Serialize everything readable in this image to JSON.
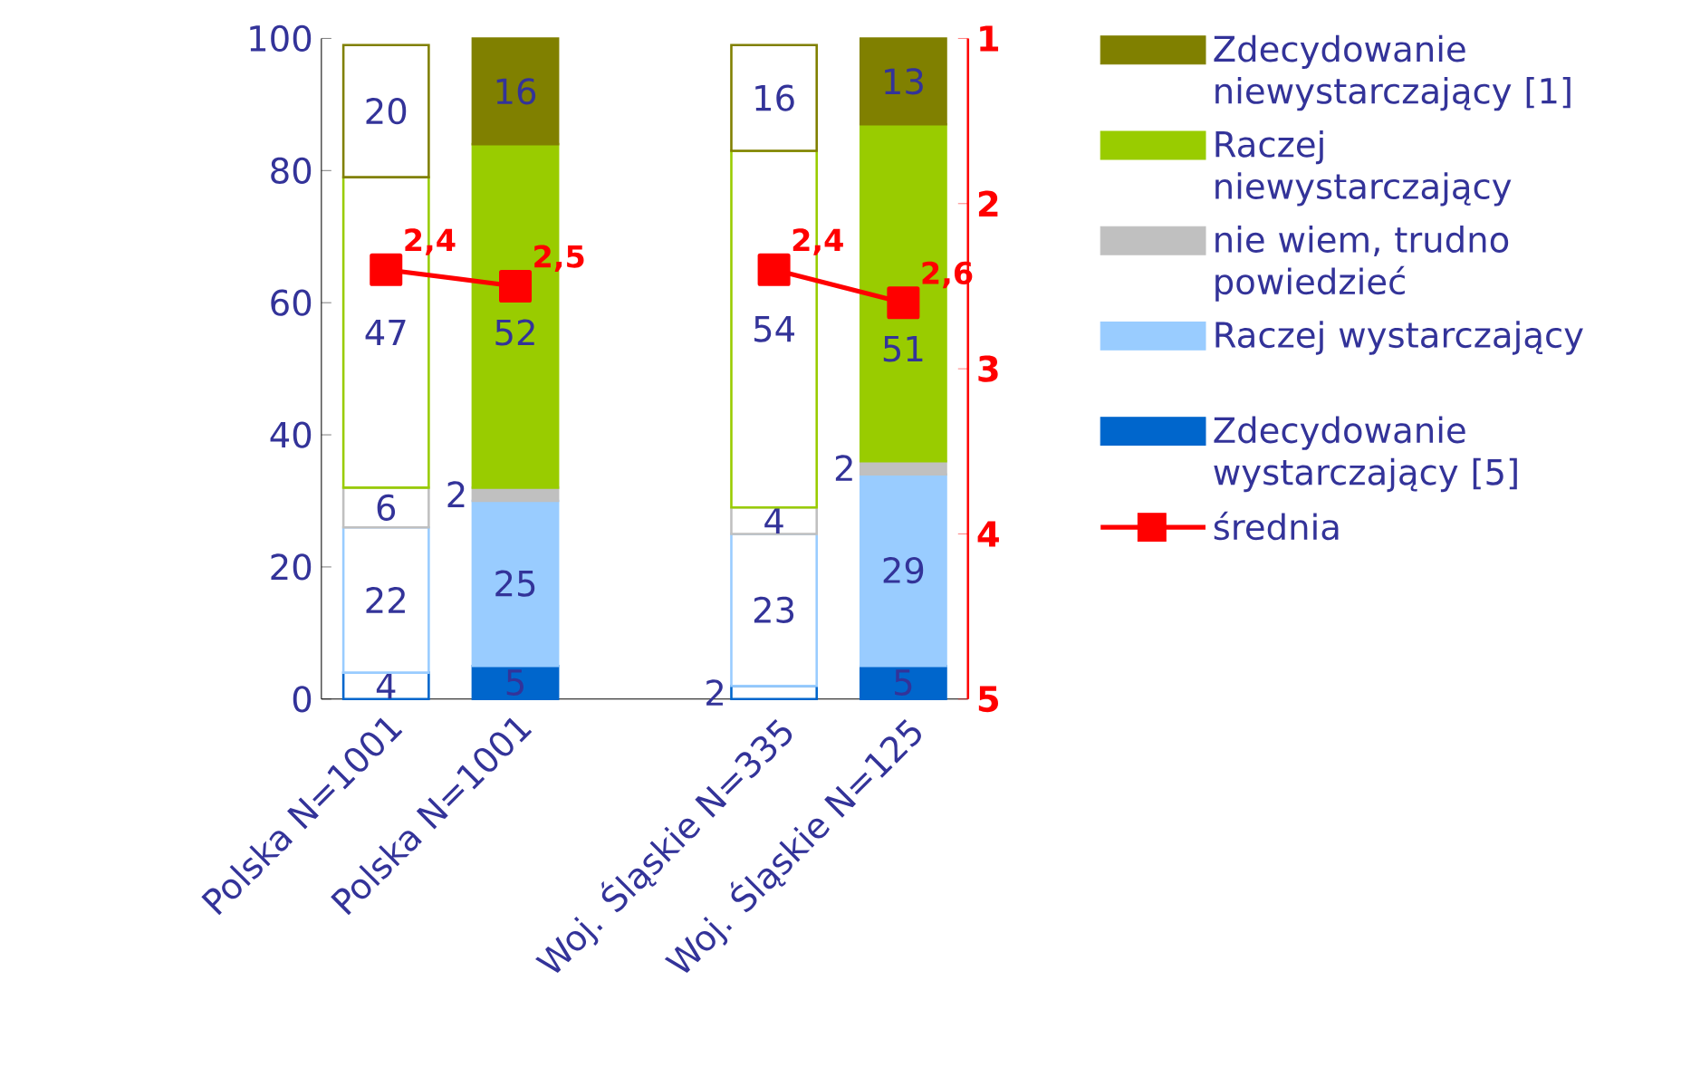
{
  "chart_data": {
    "type": "bar",
    "stacked": true,
    "data_labels": true,
    "legend": "right",
    "categories": [
      "Polska  N=1001",
      "Polska N=1001",
      null,
      "Woj. Śląskie N=335",
      "Woj. Śląskie N=125"
    ],
    "ylim": [
      0,
      100
    ],
    "yticks": [
      0,
      20,
      40,
      60,
      80,
      100
    ],
    "y2lim": [
      5,
      1
    ],
    "y2ticks": [
      1,
      2,
      3,
      4,
      5
    ],
    "series": [
      {
        "name": "Zdecydowanie wystarczający [5]",
        "color": "#0066cc",
        "colors": [
          "#ffffff",
          "#0066cc",
          null,
          "#ffffff",
          "#0066cc"
        ],
        "values": [
          4,
          5,
          null,
          2,
          5
        ]
      },
      {
        "name": "Raczej wystarczający",
        "color": "#99ccff",
        "colors": [
          "#ffffff",
          "#99ccff",
          null,
          "#ffffff",
          "#99ccff"
        ],
        "values": [
          22,
          25,
          null,
          23,
          29
        ]
      },
      {
        "name": "nie wiem, trudno powiedzieć",
        "color": "#c0c0c0",
        "colors": [
          "#ffffff",
          "#c0c0c0",
          null,
          "#ffffff",
          "#c0c0c0"
        ],
        "values": [
          6,
          2,
          null,
          4,
          2
        ]
      },
      {
        "name": "Raczej niewystarczający",
        "color": "#99cc00",
        "colors": [
          "#ffffff",
          "#99cc00",
          null,
          "#ffffff",
          "#99cc00"
        ],
        "values": [
          47,
          52,
          null,
          54,
          51
        ]
      },
      {
        "name": "Zdecydowanie niewystarczający [1]",
        "color": "#808000",
        "colors": [
          "#ffffff",
          "#808000",
          null,
          "#ffffff",
          "#808000"
        ],
        "values": [
          20,
          16,
          null,
          16,
          13
        ]
      },
      {
        "name": "średnia",
        "type": "line",
        "axis": "y2",
        "marker": "square",
        "color": "#ff0000",
        "values": [
          2.4,
          2.5,
          null,
          2.4,
          2.6
        ],
        "value_labels": [
          "2,4",
          "2,5",
          null,
          "2,4",
          "2,6"
        ]
      }
    ]
  }
}
